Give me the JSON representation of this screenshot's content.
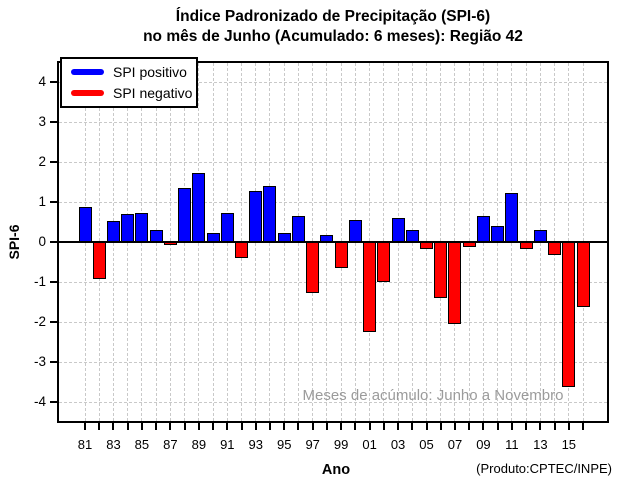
{
  "chart_data": {
    "type": "bar",
    "title": "Índice Padronizado de Precipitação (SPI-6)",
    "subtitle": "no mês de Junho (Acumulado: 6 meses): Região 42",
    "xlabel": "Ano",
    "ylabel": "SPI-6",
    "ylim": [
      -4.5,
      4.5
    ],
    "grid": true,
    "yticks": [
      4,
      3,
      2,
      1,
      0,
      -1,
      -2,
      -3,
      -4
    ],
    "x_tick_labels": [
      "81",
      "83",
      "85",
      "87",
      "89",
      "91",
      "93",
      "95",
      "97",
      "99",
      "01",
      "03",
      "05",
      "07",
      "09",
      "11",
      "13",
      "15"
    ],
    "years": [
      1981,
      1982,
      1983,
      1984,
      1985,
      1986,
      1987,
      1988,
      1989,
      1990,
      1991,
      1992,
      1993,
      1994,
      1995,
      1996,
      1997,
      1998,
      1999,
      2000,
      2001,
      2002,
      2003,
      2004,
      2005,
      2006,
      2007,
      2008,
      2009,
      2010,
      2011,
      2012,
      2013,
      2014,
      2015,
      2016
    ],
    "values": [
      0.87,
      -0.9,
      0.52,
      0.7,
      0.73,
      0.3,
      -0.04,
      1.35,
      1.72,
      0.23,
      0.73,
      -0.38,
      1.28,
      1.4,
      0.23,
      0.64,
      -1.24,
      0.17,
      -0.62,
      0.56,
      -2.22,
      -0.98,
      0.6,
      0.31,
      -0.16,
      -1.38,
      -2.02,
      -0.11,
      0.66,
      0.41,
      1.22,
      -0.16,
      0.31,
      -0.31,
      -3.6,
      -1.6
    ],
    "legend": {
      "position": "top-left",
      "items": [
        {
          "label": "SPI positivo",
          "color": "#0000ff"
        },
        {
          "label": "SPI negativo",
          "color": "#ff0000"
        }
      ]
    },
    "annotation": "Meses de acúmulo: Junho a Novembro",
    "credit": "(Produto:CPTEC/INPE)",
    "colors": {
      "positive": "#0000ff",
      "negative": "#ff0000",
      "gridline": "#c9c9c9",
      "annotation": "#9b9b9b",
      "axis": "#000000"
    }
  }
}
